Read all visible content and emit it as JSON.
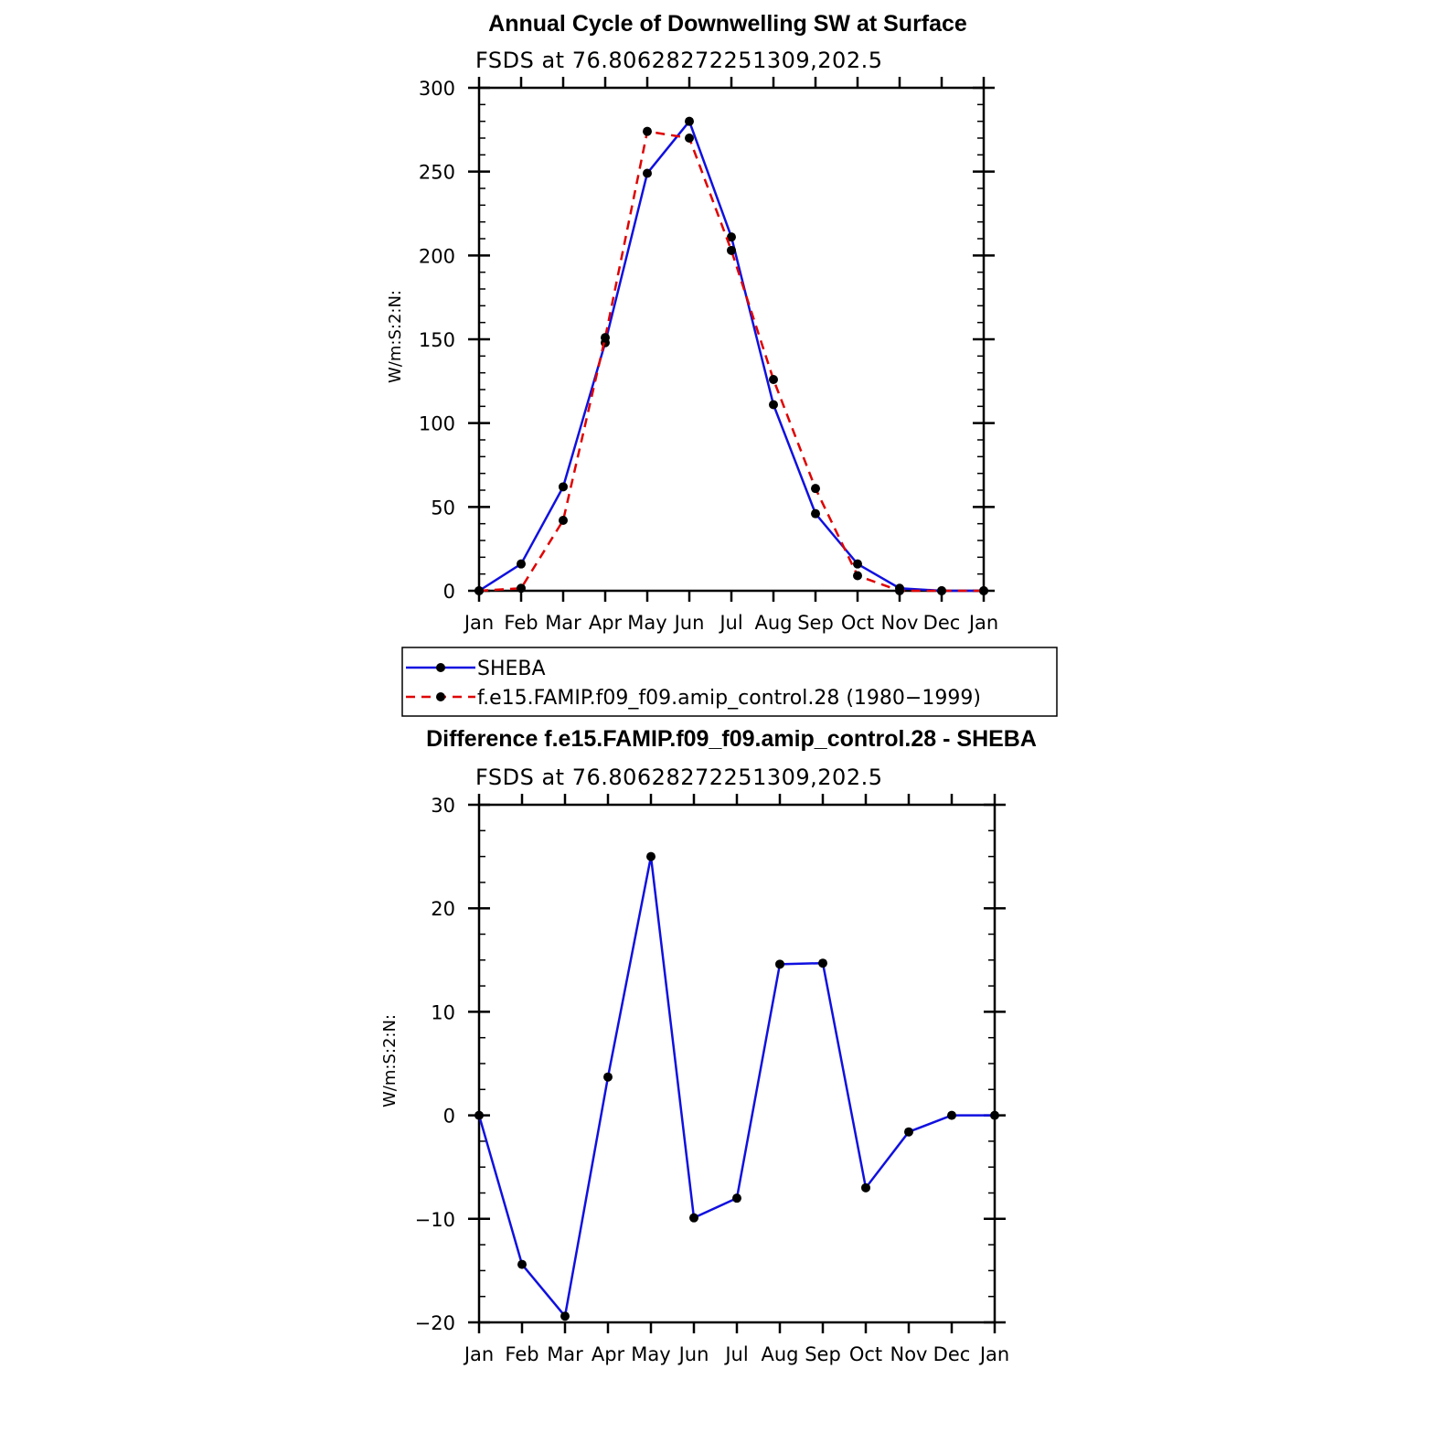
{
  "colors": {
    "sheba": "#1010e0",
    "model": "#e00000",
    "marker": "#000000",
    "axis": "#000000"
  },
  "chart_data": [
    {
      "type": "line",
      "title": "Annual Cycle of Downwelling SW at Surface",
      "subtitle": "FSDS at 76.80628272251309,202.5",
      "ylabel": "W/m:S:2:N:",
      "xlabel": "",
      "x_tick_labels": [
        "Jan",
        "Feb",
        "Mar",
        "Apr",
        "May",
        "Jun",
        "Jul",
        "Aug",
        "Sep",
        "Oct",
        "Nov",
        "Dec",
        "Jan"
      ],
      "y_ticks": [
        0,
        50,
        100,
        150,
        200,
        250,
        300
      ],
      "ylim": [
        0,
        300
      ],
      "series": [
        {
          "name": "SHEBA",
          "style": "solid",
          "color": "#1010e0",
          "values": [
            0,
            16,
            62,
            148,
            249,
            280,
            211,
            111,
            46,
            16,
            1.5,
            0,
            0
          ]
        },
        {
          "name": "f.e15.FAMIP.f09_f09.amip_control.28 (1980−1999)",
          "style": "dashed",
          "color": "#e00000",
          "values": [
            0,
            1.5,
            42,
            151,
            274,
            270,
            203,
            126,
            61,
            9,
            0,
            0,
            0
          ]
        }
      ],
      "legend": "below"
    },
    {
      "type": "line",
      "title": "Difference f.e15.FAMIP.f09_f09.amip_control.28 - SHEBA",
      "subtitle": "FSDS at 76.80628272251309,202.5",
      "ylabel": "W/m:S:2:N:",
      "xlabel": "",
      "x_tick_labels": [
        "Jan",
        "Feb",
        "Mar",
        "Apr",
        "May",
        "Jun",
        "Jul",
        "Aug",
        "Sep",
        "Oct",
        "Nov",
        "Dec",
        "Jan"
      ],
      "y_ticks": [
        -20,
        -10,
        0,
        10,
        20,
        30
      ],
      "y_tick_labels": [
        "−20",
        "−10",
        "0",
        "10",
        "20",
        "30"
      ],
      "ylim": [
        -20,
        30
      ],
      "series": [
        {
          "color": "#1010e0",
          "style": "solid",
          "values": [
            0,
            -14.4,
            -19.4,
            3.7,
            25,
            -9.9,
            -8,
            14.6,
            14.7,
            -7,
            -1.6,
            0,
            0
          ]
        }
      ]
    }
  ]
}
